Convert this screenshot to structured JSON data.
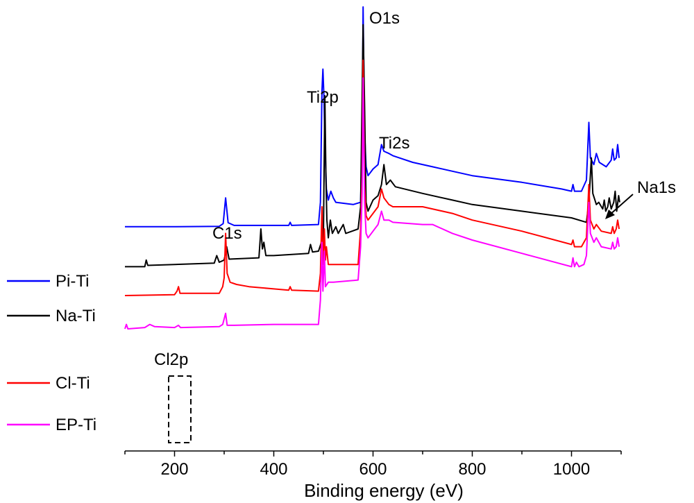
{
  "chart_data": {
    "type": "line",
    "title": "",
    "xlabel": "Binding energy (eV)",
    "ylabel": "",
    "xlim": [
      100,
      1100
    ],
    "ylim": [
      0,
      1
    ],
    "x_ticks": [
      200,
      400,
      600,
      800,
      1000
    ],
    "x_tick_labels": [
      "200",
      "400",
      "600",
      "800",
      "1000"
    ],
    "legend": {
      "placement": "left"
    },
    "series": [
      {
        "name": "Pi-Ti",
        "color": "#0000ff",
        "points": [
          [
            100,
            0.505
          ],
          [
            200,
            0.505
          ],
          [
            290,
            0.506
          ],
          [
            298,
            0.512
          ],
          [
            303,
            0.57
          ],
          [
            308,
            0.514
          ],
          [
            320,
            0.508
          ],
          [
            430,
            0.508
          ],
          [
            433,
            0.515
          ],
          [
            436,
            0.508
          ],
          [
            490,
            0.51
          ],
          [
            494,
            0.56
          ],
          [
            497,
            0.81
          ],
          [
            499,
            0.86
          ],
          [
            501,
            0.8
          ],
          [
            503,
            0.7
          ],
          [
            506,
            0.59
          ],
          [
            510,
            0.565
          ],
          [
            515,
            0.585
          ],
          [
            520,
            0.57
          ],
          [
            525,
            0.56
          ],
          [
            560,
            0.555
          ],
          [
            575,
            0.56
          ],
          [
            578,
            0.7
          ],
          [
            580,
            1.0
          ],
          [
            583,
            0.72
          ],
          [
            586,
            0.64
          ],
          [
            590,
            0.62
          ],
          [
            600,
            0.635
          ],
          [
            610,
            0.645
          ],
          [
            617,
            0.69
          ],
          [
            622,
            0.675
          ],
          [
            632,
            0.67
          ],
          [
            640,
            0.665
          ],
          [
            680,
            0.65
          ],
          [
            720,
            0.64
          ],
          [
            760,
            0.63
          ],
          [
            800,
            0.62
          ],
          [
            900,
            0.605
          ],
          [
            980,
            0.59
          ],
          [
            1000,
            0.585
          ],
          [
            1003,
            0.6
          ],
          [
            1006,
            0.585
          ],
          [
            1020,
            0.585
          ],
          [
            1030,
            0.61
          ],
          [
            1035,
            0.74
          ],
          [
            1038,
            0.66
          ],
          [
            1045,
            0.645
          ],
          [
            1050,
            0.67
          ],
          [
            1056,
            0.65
          ],
          [
            1070,
            0.64
          ],
          [
            1080,
            0.655
          ],
          [
            1083,
            0.68
          ],
          [
            1086,
            0.655
          ],
          [
            1090,
            0.66
          ],
          [
            1093,
            0.69
          ],
          [
            1096,
            0.66
          ]
        ]
      },
      {
        "name": "Na-Ti",
        "color": "#000000",
        "points": [
          [
            100,
            0.415
          ],
          [
            140,
            0.415
          ],
          [
            143,
            0.43
          ],
          [
            146,
            0.418
          ],
          [
            200,
            0.42
          ],
          [
            280,
            0.423
          ],
          [
            285,
            0.44
          ],
          [
            290,
            0.425
          ],
          [
            300,
            0.43
          ],
          [
            305,
            0.46
          ],
          [
            310,
            0.432
          ],
          [
            370,
            0.435
          ],
          [
            374,
            0.5
          ],
          [
            377,
            0.455
          ],
          [
            380,
            0.47
          ],
          [
            384,
            0.44
          ],
          [
            400,
            0.44
          ],
          [
            470,
            0.445
          ],
          [
            474,
            0.465
          ],
          [
            478,
            0.448
          ],
          [
            490,
            0.45
          ],
          [
            496,
            0.47
          ],
          [
            500,
            0.48
          ],
          [
            503,
            0.8
          ],
          [
            505,
            0.62
          ],
          [
            507,
            0.52
          ],
          [
            510,
            0.48
          ],
          [
            514,
            0.52
          ],
          [
            518,
            0.49
          ],
          [
            525,
            0.505
          ],
          [
            530,
            0.49
          ],
          [
            540,
            0.51
          ],
          [
            545,
            0.49
          ],
          [
            570,
            0.5
          ],
          [
            575,
            0.55
          ],
          [
            578,
            0.8
          ],
          [
            580,
            0.96
          ],
          [
            583,
            0.78
          ],
          [
            586,
            0.56
          ],
          [
            590,
            0.54
          ],
          [
            600,
            0.565
          ],
          [
            610,
            0.575
          ],
          [
            617,
            0.6
          ],
          [
            622,
            0.645
          ],
          [
            627,
            0.6
          ],
          [
            635,
            0.61
          ],
          [
            645,
            0.595
          ],
          [
            700,
            0.58
          ],
          [
            760,
            0.565
          ],
          [
            800,
            0.555
          ],
          [
            900,
            0.54
          ],
          [
            1000,
            0.525
          ],
          [
            1030,
            0.515
          ],
          [
            1035,
            0.56
          ],
          [
            1040,
            0.66
          ],
          [
            1043,
            0.58
          ],
          [
            1050,
            0.555
          ],
          [
            1055,
            0.56
          ],
          [
            1063,
            0.545
          ],
          [
            1066,
            0.565
          ],
          [
            1069,
            0.54
          ],
          [
            1073,
            0.55
          ],
          [
            1076,
            0.57
          ],
          [
            1080,
            0.545
          ],
          [
            1085,
            0.56
          ],
          [
            1088,
            0.585
          ],
          [
            1091,
            0.54
          ],
          [
            1095,
            0.575
          ],
          [
            1097,
            0.56
          ]
        ]
      },
      {
        "name": "Cl-Ti",
        "color": "#ff0000",
        "points": [
          [
            100,
            0.35
          ],
          [
            200,
            0.352
          ],
          [
            205,
            0.36
          ],
          [
            208,
            0.37
          ],
          [
            211,
            0.355
          ],
          [
            290,
            0.355
          ],
          [
            297,
            0.37
          ],
          [
            300,
            0.39
          ],
          [
            303,
            0.49
          ],
          [
            306,
            0.4
          ],
          [
            312,
            0.38
          ],
          [
            325,
            0.375
          ],
          [
            350,
            0.37
          ],
          [
            400,
            0.365
          ],
          [
            430,
            0.362
          ],
          [
            433,
            0.37
          ],
          [
            436,
            0.362
          ],
          [
            490,
            0.36
          ],
          [
            494,
            0.4
          ],
          [
            497,
            0.55
          ],
          [
            499,
            0.42
          ],
          [
            502,
            0.5
          ],
          [
            504,
            0.43
          ],
          [
            506,
            0.46
          ],
          [
            510,
            0.42
          ],
          [
            520,
            0.42
          ],
          [
            570,
            0.42
          ],
          [
            575,
            0.5
          ],
          [
            578,
            0.62
          ],
          [
            580,
            0.88
          ],
          [
            583,
            0.6
          ],
          [
            586,
            0.53
          ],
          [
            590,
            0.52
          ],
          [
            600,
            0.535
          ],
          [
            610,
            0.55
          ],
          [
            617,
            0.59
          ],
          [
            622,
            0.57
          ],
          [
            632,
            0.555
          ],
          [
            640,
            0.55
          ],
          [
            700,
            0.55
          ],
          [
            760,
            0.535
          ],
          [
            800,
            0.52
          ],
          [
            900,
            0.495
          ],
          [
            1000,
            0.465
          ],
          [
            1003,
            0.475
          ],
          [
            1006,
            0.46
          ],
          [
            1020,
            0.46
          ],
          [
            1030,
            0.48
          ],
          [
            1035,
            0.6
          ],
          [
            1038,
            0.52
          ],
          [
            1045,
            0.5
          ],
          [
            1050,
            0.51
          ],
          [
            1060,
            0.495
          ],
          [
            1080,
            0.49
          ],
          [
            1083,
            0.505
          ],
          [
            1086,
            0.49
          ],
          [
            1090,
            0.5
          ],
          [
            1093,
            0.52
          ],
          [
            1096,
            0.5
          ]
        ]
      },
      {
        "name": "EP-Ti",
        "color": "#ff00ff",
        "points": [
          [
            100,
            0.275
          ],
          [
            103,
            0.285
          ],
          [
            106,
            0.275
          ],
          [
            140,
            0.278
          ],
          [
            150,
            0.285
          ],
          [
            160,
            0.28
          ],
          [
            200,
            0.278
          ],
          [
            208,
            0.283
          ],
          [
            212,
            0.278
          ],
          [
            290,
            0.28
          ],
          [
            297,
            0.285
          ],
          [
            303,
            0.31
          ],
          [
            306,
            0.283
          ],
          [
            320,
            0.283
          ],
          [
            400,
            0.285
          ],
          [
            490,
            0.285
          ],
          [
            494,
            0.34
          ],
          [
            497,
            0.47
          ],
          [
            499,
            0.36
          ],
          [
            502,
            0.45
          ],
          [
            504,
            0.37
          ],
          [
            510,
            0.38
          ],
          [
            520,
            0.38
          ],
          [
            570,
            0.385
          ],
          [
            575,
            0.46
          ],
          [
            578,
            0.58
          ],
          [
            580,
            0.84
          ],
          [
            583,
            0.56
          ],
          [
            586,
            0.49
          ],
          [
            590,
            0.48
          ],
          [
            600,
            0.495
          ],
          [
            610,
            0.51
          ],
          [
            617,
            0.54
          ],
          [
            622,
            0.52
          ],
          [
            632,
            0.52
          ],
          [
            640,
            0.515
          ],
          [
            700,
            0.51
          ],
          [
            720,
            0.51
          ],
          [
            760,
            0.49
          ],
          [
            800,
            0.475
          ],
          [
            900,
            0.445
          ],
          [
            1000,
            0.415
          ],
          [
            1003,
            0.435
          ],
          [
            1006,
            0.415
          ],
          [
            1010,
            0.425
          ],
          [
            1015,
            0.415
          ],
          [
            1025,
            0.42
          ],
          [
            1030,
            0.44
          ],
          [
            1035,
            0.56
          ],
          [
            1038,
            0.49
          ],
          [
            1045,
            0.47
          ],
          [
            1050,
            0.48
          ],
          [
            1060,
            0.46
          ],
          [
            1080,
            0.455
          ],
          [
            1083,
            0.47
          ],
          [
            1086,
            0.455
          ],
          [
            1090,
            0.46
          ],
          [
            1093,
            0.48
          ],
          [
            1096,
            0.46
          ]
        ]
      }
    ],
    "annotations": [
      "C1s",
      "Ti2p",
      "O1s",
      "Ti2s",
      "Na1s",
      "Cl2p"
    ]
  }
}
